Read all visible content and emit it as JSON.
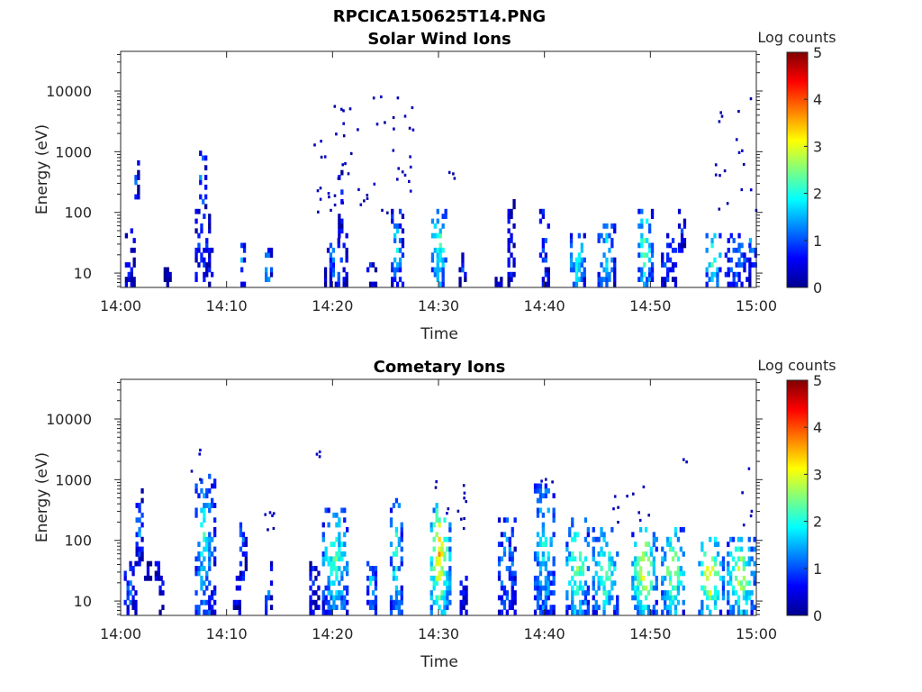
{
  "figure": {
    "title": "RPCICA150625T14.PNG"
  },
  "colors": {
    "colormap": "jet",
    "background": "#ffffff",
    "axes": "#262626"
  },
  "chart_data": [
    {
      "type": "heatmap",
      "title": "Solar Wind Ions",
      "xlabel": "Time",
      "ylabel": "Energy (eV)",
      "x_ticks": [
        "14:00",
        "14:10",
        "14:20",
        "14:30",
        "14:40",
        "14:50",
        "15:00"
      ],
      "x_range_minutes": [
        0,
        60
      ],
      "y_ticks": [
        "10",
        "100",
        "1000",
        "10000"
      ],
      "y_scale": "log",
      "y_range": [
        5.8,
        45000
      ],
      "colorbar": {
        "label": "Log counts",
        "ticks": [
          "0",
          "1",
          "2",
          "3",
          "4",
          "5"
        ],
        "range": [
          0,
          5
        ]
      },
      "clusters": [
        {
          "t": [
            0.4,
            1.2
          ],
          "e": [
            6,
            50
          ],
          "v": 0.7
        },
        {
          "t": [
            1.3,
            1.6
          ],
          "e": [
            130,
            600
          ],
          "v": 1.2
        },
        {
          "t": [
            3.8,
            4.6
          ],
          "e": [
            6,
            12
          ],
          "v": 0.1
        },
        {
          "t": [
            7.0,
            8.6
          ],
          "e": [
            6,
            110
          ],
          "v": 1.0
        },
        {
          "t": [
            7.4,
            8.0
          ],
          "e": [
            120,
            1000
          ],
          "v": 1.6
        },
        {
          "t": [
            11.3,
            11.7
          ],
          "e": [
            6,
            40
          ],
          "v": 1.7
        },
        {
          "t": [
            13.6,
            14.2
          ],
          "e": [
            6,
            22
          ],
          "v": 1.8
        },
        {
          "t": [
            19.2,
            21.4
          ],
          "e": [
            6,
            45
          ],
          "v": 1.3
        },
        {
          "t": [
            20.5,
            21.0
          ],
          "e": [
            45,
            650
          ],
          "v": 0.9
        },
        {
          "t": [
            23.2,
            24.0
          ],
          "e": [
            6,
            20
          ],
          "v": 0.7
        },
        {
          "t": [
            25.5,
            26.6
          ],
          "e": [
            6,
            100
          ],
          "v": 1.8
        },
        {
          "t": [
            29.3,
            30.8
          ],
          "e": [
            6,
            120
          ],
          "v": 2.4
        },
        {
          "t": [
            31.9,
            32.6
          ],
          "e": [
            6,
            22
          ],
          "v": 0.9
        },
        {
          "t": [
            35.3,
            36.0
          ],
          "e": [
            6,
            12
          ],
          "v": 0.4
        },
        {
          "t": [
            36.5,
            37.1
          ],
          "e": [
            6,
            140
          ],
          "v": 0.8
        },
        {
          "t": [
            39.5,
            40.5
          ],
          "e": [
            6,
            100
          ],
          "v": 1.0
        },
        {
          "t": [
            42.4,
            43.8
          ],
          "e": [
            6,
            45
          ],
          "v": 2.3
        },
        {
          "t": [
            45.0,
            46.6
          ],
          "e": [
            6,
            70
          ],
          "v": 1.9
        },
        {
          "t": [
            48.8,
            50.2
          ],
          "e": [
            6,
            100
          ],
          "v": 2.6
        },
        {
          "t": [
            51.0,
            52.4
          ],
          "e": [
            6,
            40
          ],
          "v": 1.2
        },
        {
          "t": [
            52.6,
            53.3
          ],
          "e": [
            25,
            110
          ],
          "v": 0.9
        },
        {
          "t": [
            55.2,
            56.6
          ],
          "e": [
            6,
            45
          ],
          "v": 2.6
        },
        {
          "t": [
            57.0,
            59.4
          ],
          "e": [
            6,
            45
          ],
          "v": 1.3
        },
        {
          "t": [
            59.3,
            59.9
          ],
          "e": [
            15,
            45
          ],
          "v": 2.0
        }
      ],
      "sparse": [
        {
          "t": [
            18.0,
            28.0
          ],
          "e": [
            100,
            9000
          ],
          "n": 55
        },
        {
          "t": [
            56.0,
            60.0
          ],
          "e": [
            100,
            9000
          ],
          "n": 18
        },
        {
          "t": [
            30.5,
            31.5
          ],
          "e": [
            140,
            600
          ],
          "n": 3
        }
      ]
    },
    {
      "type": "heatmap",
      "title": "Cometary Ions",
      "xlabel": "Time",
      "ylabel": "Energy (eV)",
      "x_ticks": [
        "14:00",
        "14:10",
        "14:20",
        "14:30",
        "14:40",
        "14:50",
        "15:00"
      ],
      "x_range_minutes": [
        0,
        60
      ],
      "y_ticks": [
        "10",
        "100",
        "1000",
        "10000"
      ],
      "y_scale": "log",
      "y_range": [
        5.8,
        45000
      ],
      "colorbar": {
        "label": "Log counts",
        "ticks": [
          "0",
          "1",
          "2",
          "3",
          "4",
          "5"
        ],
        "range": [
          0,
          5
        ]
      },
      "clusters": [
        {
          "t": [
            0.3,
            1.4
          ],
          "e": [
            6,
            45
          ],
          "v": 1.2
        },
        {
          "t": [
            1.4,
            2.0
          ],
          "e": [
            45,
            800
          ],
          "v": 1.6
        },
        {
          "t": [
            2.2,
            3.8
          ],
          "e": [
            25,
            45
          ],
          "v": 0.5
        },
        {
          "t": [
            3.6,
            4.2
          ],
          "e": [
            6,
            25
          ],
          "v": 0.7
        },
        {
          "t": [
            7.0,
            8.8
          ],
          "e": [
            6,
            1500
          ],
          "v": 2.0
        },
        {
          "t": [
            10.6,
            11.3
          ],
          "e": [
            6,
            25
          ],
          "v": 0.6
        },
        {
          "t": [
            11.2,
            11.8
          ],
          "e": [
            25,
            250
          ],
          "v": 1.3
        },
        {
          "t": [
            13.6,
            14.2
          ],
          "e": [
            6,
            45
          ],
          "v": 1.8
        },
        {
          "t": [
            17.8,
            18.6
          ],
          "e": [
            6,
            45
          ],
          "v": 0.8
        },
        {
          "t": [
            19.0,
            21.5
          ],
          "e": [
            6,
            300
          ],
          "v": 2.4
        },
        {
          "t": [
            23.2,
            24.2
          ],
          "e": [
            6,
            45
          ],
          "v": 1.9
        },
        {
          "t": [
            25.4,
            26.6
          ],
          "e": [
            6,
            500
          ],
          "v": 2.2
        },
        {
          "t": [
            29.2,
            31.0
          ],
          "e": [
            6,
            400
          ],
          "v": 3.6
        },
        {
          "t": [
            32.0,
            32.6
          ],
          "e": [
            6,
            40
          ],
          "v": 0.9
        },
        {
          "t": [
            35.6,
            37.2
          ],
          "e": [
            6,
            200
          ],
          "v": 1.6
        },
        {
          "t": [
            39.0,
            41.0
          ],
          "e": [
            6,
            800
          ],
          "v": 2.0
        },
        {
          "t": [
            42.0,
            44.2
          ],
          "e": [
            6,
            200
          ],
          "v": 2.8
        },
        {
          "t": [
            44.5,
            47.0
          ],
          "e": [
            6,
            150
          ],
          "v": 2.6
        },
        {
          "t": [
            48.2,
            50.6
          ],
          "e": [
            6,
            150
          ],
          "v": 3.3
        },
        {
          "t": [
            51.0,
            53.2
          ],
          "e": [
            6,
            150
          ],
          "v": 2.9
        },
        {
          "t": [
            54.5,
            56.8
          ],
          "e": [
            6,
            100
          ],
          "v": 3.4
        },
        {
          "t": [
            57.2,
            59.8
          ],
          "e": [
            6,
            100
          ],
          "v": 3.1
        }
      ],
      "sparse": [
        {
          "t": [
            6.5,
            7.5
          ],
          "e": [
            900,
            4500
          ],
          "n": 4
        },
        {
          "t": [
            13.5,
            15.0
          ],
          "e": [
            140,
            400
          ],
          "n": 6
        },
        {
          "t": [
            18.0,
            19.0
          ],
          "e": [
            2500,
            3500
          ],
          "n": 3
        },
        {
          "t": [
            29.5,
            33.0
          ],
          "e": [
            150,
            1000
          ],
          "n": 12
        },
        {
          "t": [
            39.5,
            41.0
          ],
          "e": [
            900,
            1200
          ],
          "n": 3
        },
        {
          "t": [
            46.0,
            50.0
          ],
          "e": [
            200,
            1200
          ],
          "n": 10
        },
        {
          "t": [
            52.8,
            53.5
          ],
          "e": [
            2000,
            2800
          ],
          "n": 2
        },
        {
          "t": [
            58.0,
            59.8
          ],
          "e": [
            150,
            1600
          ],
          "n": 5
        }
      ]
    }
  ]
}
